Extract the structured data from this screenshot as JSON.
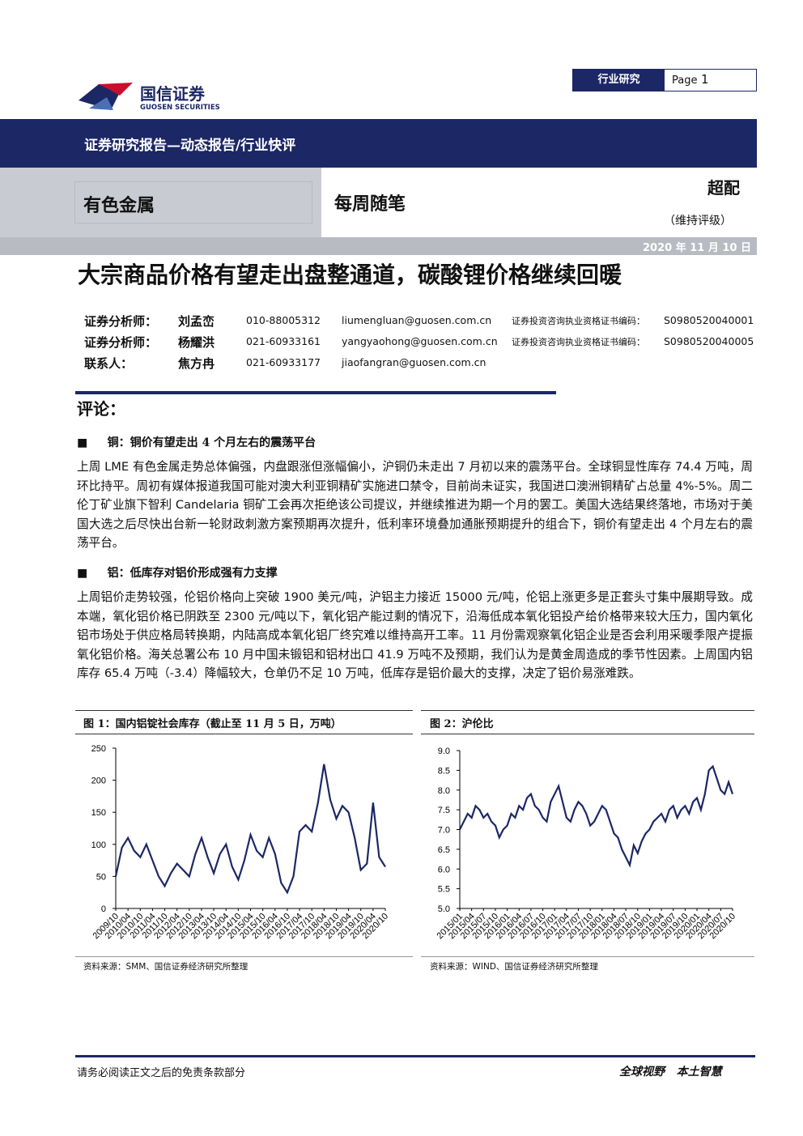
{
  "header": {
    "logo_cn": "国信证券",
    "logo_en": "GUOSEN SECURITIES",
    "tag": "行业研究",
    "page_label": "Page",
    "page_no": "1"
  },
  "banner": "证券研究报告—动态报告/行业快评",
  "sector": "有色金属",
  "column": "每周随笔",
  "rating": "超配",
  "rating_note": "（维持评级）",
  "date": "2020 年 11 月 10 日",
  "title": "大宗商品价格有望走出盘整通道，碳酸锂价格继续回暖",
  "analysts": [
    [
      "证券分析师：",
      "刘孟峦",
      "010-88005312",
      "liumengluan@guosen.com.cn",
      "证券投资咨询执业资格证书编码：",
      "S0980520040001"
    ],
    [
      "证券分析师：",
      "杨耀洪",
      "021-60933161",
      "yangyaohong@guosen.com.cn",
      "证券投资咨询执业资格证书编码：",
      "S0980520040005"
    ],
    [
      "联系人：",
      "焦方冉",
      "021-60933177",
      "jiaofangran@guosen.com.cn"
    ]
  ],
  "comment_heading": "评论：",
  "sections": [
    {
      "heading": "铜：铜价有望走出 4 个月左右的震荡平台",
      "body": "上周 LME 有色金属走势总体偏强，内盘跟涨但涨幅偏小，沪铜仍未走出 7 月初以来的震荡平台。全球铜显性库存 74.4 万吨，周环比持平。周初有媒体报道我国可能对澳大利亚铜精矿实施进口禁令，目前尚未证实，我国进口澳洲铜精矿占总量 4%-5%。周二伦丁矿业旗下智利 Candelaria 铜矿工会再次拒绝该公司提议，并继续推进为期一个月的罢工。美国大选结果终落地，市场对于美国大选之后尽快出台新一轮财政刺激方案预期再次提升，低利率环境叠加通胀预期提升的组合下，铜价有望走出 4 个月左右的震荡平台。"
    },
    {
      "heading": "铝：低库存对铝价形成强有力支撑",
      "body": "上周铝价走势较强，伦铝价格向上突破 1900 美元/吨，沪铝主力接近 15000 元/吨，伦铝上涨更多是正套头寸集中展期导致。成本端，氧化铝价格已阴跌至 2300 元/吨以下，氧化铝产能过剩的情况下，沿海低成本氧化铝投产给价格带来较大压力，国内氧化铝市场处于供应格局转换期，内陆高成本氧化铝厂终究难以维持高开工率。11 月份需观察氧化铝企业是否会利用采暖季限产提振氧化铝价格。海关总署公布 10 月中国未锻铝和铝材出口 41.9 万吨不及预期，我们认为是黄金周造成的季节性因素。上周国内铝库存 65.4 万吨（-3.4）降幅较大，仓单仍不足 10 万吨，低库存是铝价最大的支撑，决定了铝价易涨难跌。"
    }
  ],
  "chart_data": [
    {
      "type": "line",
      "title": "图 1：国内铝锭社会库存（截止至 11 月 5 日，万吨）",
      "source": "资料来源：SMM、国信证券经济研究所整理",
      "color": "#1c2766",
      "categories": [
        "2009/10",
        null,
        "2010/04",
        null,
        "2010/10",
        null,
        "2011/04",
        null,
        "2011/10",
        null,
        "2012/04",
        null,
        "2012/10",
        null,
        "2013/04",
        null,
        "2013/10",
        null,
        "2014/04",
        null,
        "2014/10",
        null,
        "2015/04",
        null,
        "2015/10",
        null,
        "2016/04",
        null,
        "2016/10",
        null,
        "2017/04",
        null,
        "2017/10",
        null,
        "2018/04",
        null,
        "2018/10",
        null,
        "2019/04",
        null,
        "2019/10",
        null,
        "2020/04",
        null,
        "2020/10"
      ],
      "values": [
        50,
        95,
        110,
        90,
        80,
        100,
        75,
        50,
        35,
        55,
        70,
        60,
        50,
        85,
        110,
        80,
        55,
        85,
        100,
        65,
        45,
        75,
        115,
        90,
        80,
        110,
        85,
        40,
        25,
        50,
        120,
        130,
        120,
        165,
        225,
        170,
        140,
        160,
        150,
        110,
        60,
        70,
        165,
        80,
        65
      ],
      "ylim": [
        0,
        250
      ],
      "yticks": [
        0,
        50,
        100,
        150,
        200,
        250
      ]
    },
    {
      "type": "line",
      "title": "图 2：沪伦比",
      "source": "资料来源：WIND、国信证券经济研究所整理",
      "color": "#1c2766",
      "categories": [
        "2015/01",
        null,
        null,
        "2015/04",
        null,
        null,
        "2015/07",
        null,
        null,
        "2015/10",
        null,
        null,
        "2016/01",
        null,
        null,
        "2016/04",
        null,
        null,
        "2016/07",
        null,
        null,
        "2016/10",
        null,
        null,
        "2017/01",
        null,
        null,
        "2017/04",
        null,
        null,
        "2017/07",
        null,
        null,
        "2017/10",
        null,
        null,
        "2018/01",
        null,
        null,
        "2018/04",
        null,
        null,
        "2018/07",
        null,
        null,
        "2018/10",
        null,
        null,
        "2019/01",
        null,
        null,
        "2019/04",
        null,
        null,
        "2019/07",
        null,
        null,
        "2019/10",
        null,
        null,
        "2020/01",
        null,
        null,
        "2020/04",
        null,
        null,
        "2020/07",
        null,
        null,
        "2020/10"
      ],
      "values": [
        7.0,
        7.2,
        7.4,
        7.3,
        7.6,
        7.5,
        7.3,
        7.4,
        7.2,
        7.1,
        6.8,
        7.0,
        7.1,
        7.4,
        7.3,
        7.6,
        7.5,
        7.8,
        7.9,
        7.6,
        7.5,
        7.3,
        7.2,
        7.7,
        7.9,
        8.1,
        7.7,
        7.3,
        7.2,
        7.5,
        7.7,
        7.6,
        7.4,
        7.1,
        7.2,
        7.4,
        7.6,
        7.5,
        7.2,
        6.9,
        6.8,
        6.5,
        6.3,
        6.1,
        6.6,
        6.4,
        6.7,
        6.9,
        7.0,
        7.2,
        7.3,
        7.4,
        7.2,
        7.5,
        7.6,
        7.3,
        7.5,
        7.6,
        7.4,
        7.7,
        7.8,
        7.5,
        7.9,
        8.5,
        8.6,
        8.3,
        8.0,
        7.9,
        8.2,
        7.9
      ],
      "ylim": [
        5,
        9
      ],
      "yticks": [
        {
          "value": 5,
          "label": "5.0"
        },
        5.5,
        {
          "value": 6,
          "label": "6.0"
        },
        6.5,
        {
          "value": 7,
          "label": "7.0"
        },
        7.5,
        {
          "value": 8,
          "label": "8.0"
        },
        8.5,
        {
          "value": 9,
          "label": "9.0"
        }
      ]
    }
  ],
  "footer": {
    "disclaimer": "请务必阅读正文之后的免责条款部分",
    "slogan_1": "全球视野",
    "slogan_2": "本土智慧"
  }
}
